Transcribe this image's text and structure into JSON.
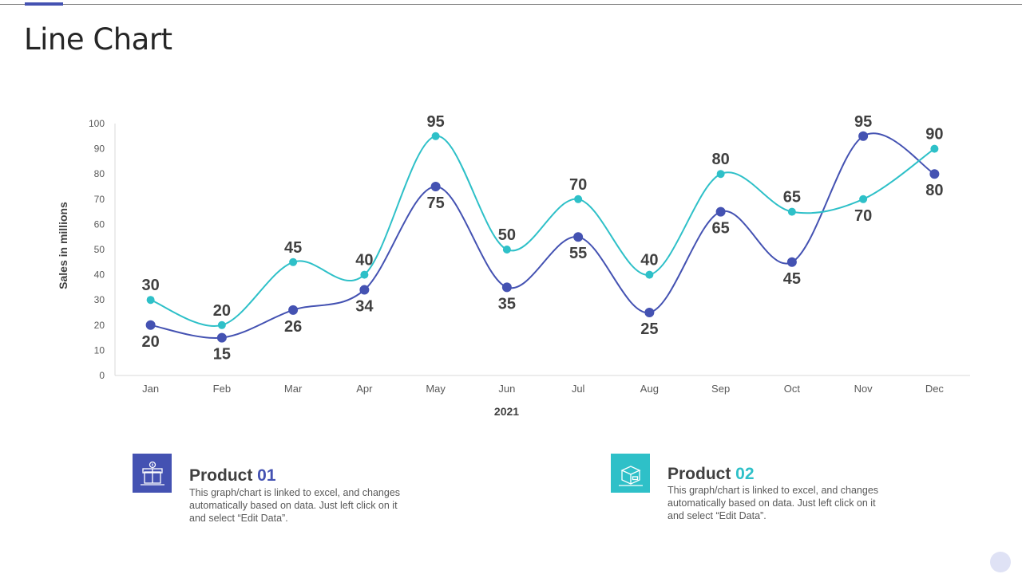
{
  "page": {
    "title": "Line Chart"
  },
  "chart_data": {
    "type": "line",
    "categories": [
      "Jan",
      "Feb",
      "Mar",
      "Apr",
      "May",
      "Jun",
      "Jul",
      "Aug",
      "Sep",
      "Oct",
      "Nov",
      "Dec"
    ],
    "series": [
      {
        "name": "Product 01",
        "values": [
          20,
          15,
          26,
          34,
          75,
          35,
          55,
          25,
          65,
          45,
          95,
          80
        ],
        "color": "#4452b2"
      },
      {
        "name": "Product 02",
        "values": [
          30,
          20,
          45,
          40,
          95,
          50,
          70,
          40,
          80,
          65,
          70,
          90
        ],
        "color": "#2ec0c8"
      }
    ],
    "title": "",
    "xlabel": "2021",
    "ylabel": "Sales in millions",
    "ylim": [
      0,
      100
    ],
    "yticks": [
      0,
      10,
      20,
      30,
      40,
      50,
      60,
      70,
      80,
      90,
      100
    ],
    "smooth": true,
    "data_labels": true,
    "grid": false
  },
  "legend": [
    {
      "title_prefix": "Product ",
      "title_number": "01",
      "description": "This graph/chart is linked to excel, and changes automatically based on data. Just left click on it and select “Edit Data”.",
      "icon": "gift-box-icon",
      "color": "#4452b2"
    },
    {
      "title_prefix": "Product ",
      "title_number": "02",
      "description": "This graph/chart is linked to excel, and changes automatically based on data. Just left click on it and select “Edit Data”.",
      "icon": "package-box-icon",
      "color": "#2ec0c8"
    }
  ]
}
